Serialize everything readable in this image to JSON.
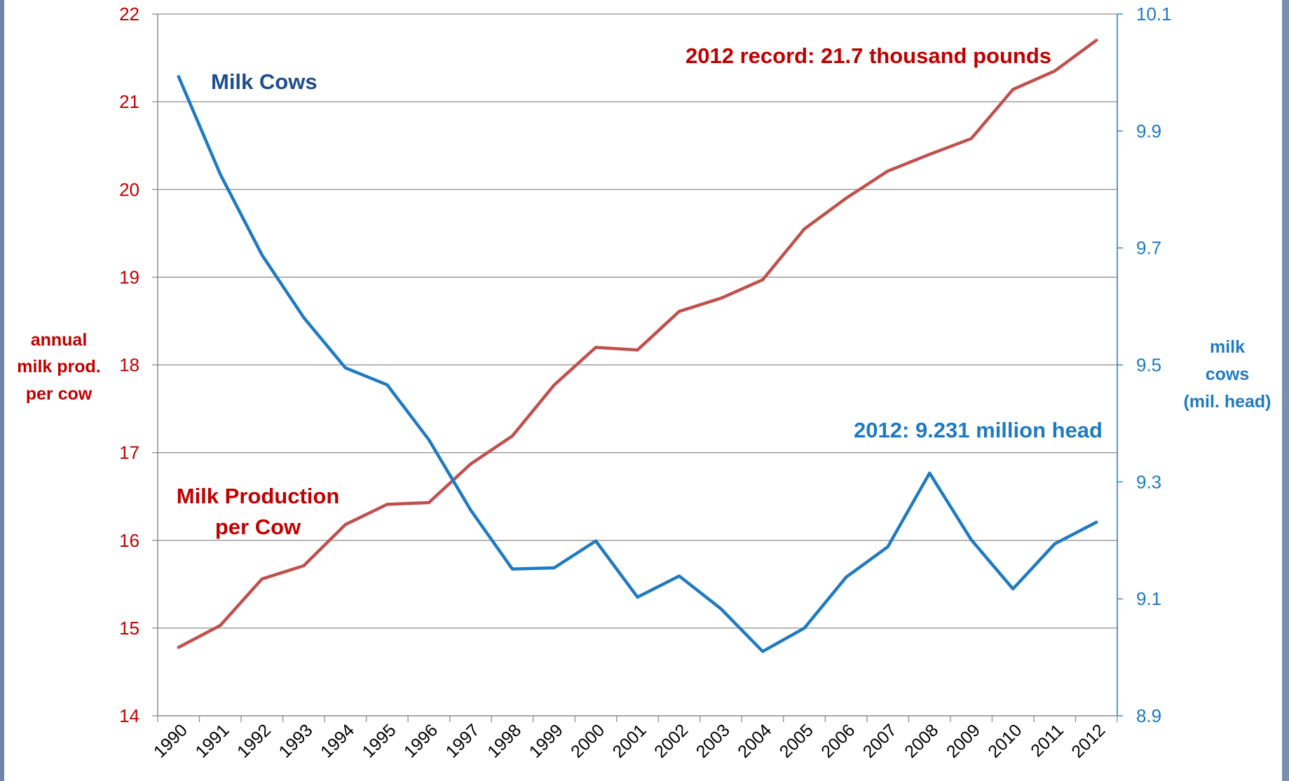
{
  "chart_data": {
    "type": "line",
    "x": [
      "1990",
      "1991",
      "1992",
      "1993",
      "1994",
      "1995",
      "1996",
      "1997",
      "1998",
      "1999",
      "2000",
      "2001",
      "2002",
      "2003",
      "2004",
      "2005",
      "2006",
      "2007",
      "2008",
      "2009",
      "2010",
      "2011",
      "2012"
    ],
    "series": [
      {
        "name": "Milk Production per Cow",
        "axis": "left",
        "color": "#c0504d",
        "values": [
          14.78,
          15.03,
          15.56,
          15.71,
          16.18,
          16.41,
          16.43,
          16.87,
          17.19,
          17.77,
          18.2,
          18.17,
          18.61,
          18.76,
          18.97,
          19.55,
          19.9,
          20.21,
          20.4,
          20.58,
          21.14,
          21.35,
          21.7
        ]
      },
      {
        "name": "Milk Cows",
        "axis": "right",
        "color": "#1f7ac0",
        "values": [
          9.993,
          9.826,
          9.688,
          9.581,
          9.495,
          9.466,
          9.372,
          9.252,
          9.151,
          9.153,
          9.199,
          9.103,
          9.139,
          9.083,
          9.01,
          9.05,
          9.137,
          9.189,
          9.315,
          9.201,
          9.117,
          9.194,
          9.231
        ]
      }
    ],
    "y_left": {
      "ylim": [
        14,
        22
      ],
      "ticks": [
        "14",
        "15",
        "16",
        "17",
        "18",
        "19",
        "20",
        "21",
        "22"
      ],
      "label": [
        "annual",
        "milk prod.",
        "per cow"
      ]
    },
    "y_right": {
      "ylim": [
        8.9,
        10.1
      ],
      "ticks": [
        "8.9",
        "9.1",
        "9.3",
        "9.5",
        "9.7",
        "9.9",
        "10.1"
      ],
      "label": [
        "milk",
        "cows",
        "(mil. head)"
      ]
    },
    "grid": true,
    "annotations": {
      "record": "2012 record: 21.7 thousand pounds",
      "cows_2012": "2012: 9.231 million head",
      "cows_series": "Milk Cows",
      "production_series": [
        "Milk Production",
        "per Cow"
      ]
    }
  }
}
